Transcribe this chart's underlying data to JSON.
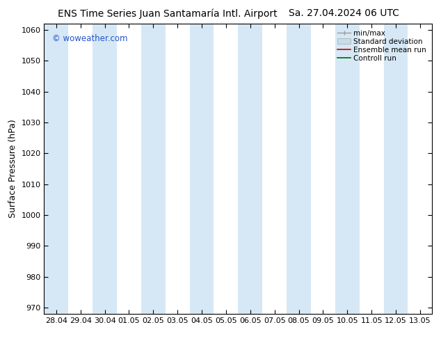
{
  "title_left": "ENS Time Series Juan Santamaría Intl. Airport",
  "title_right": "Sa. 27.04.2024 06 UTC",
  "ylabel": "Surface Pressure (hPa)",
  "ylim": [
    968,
    1062
  ],
  "yticks": [
    970,
    980,
    990,
    1000,
    1010,
    1020,
    1030,
    1040,
    1050,
    1060
  ],
  "x_labels": [
    "28.04",
    "29.04",
    "30.04",
    "01.05",
    "02.05",
    "03.05",
    "04.05",
    "05.05",
    "06.05",
    "07.05",
    "08.05",
    "09.05",
    "10.05",
    "11.05",
    "12.05",
    "13.05"
  ],
  "watermark": "© woweather.com",
  "legend_labels": [
    "min/max",
    "Standard deviation",
    "Ensemble mean run",
    "Controll run"
  ],
  "band_color": "#d6e8f5",
  "shaded_indices": [
    0,
    2,
    4,
    6,
    8,
    10,
    12,
    14
  ],
  "bg_color": "#ffffff",
  "title_fontsize": 10,
  "tick_fontsize": 8,
  "ylabel_fontsize": 9,
  "legend_fontsize": 7.5,
  "watermark_color": "#2255cc"
}
